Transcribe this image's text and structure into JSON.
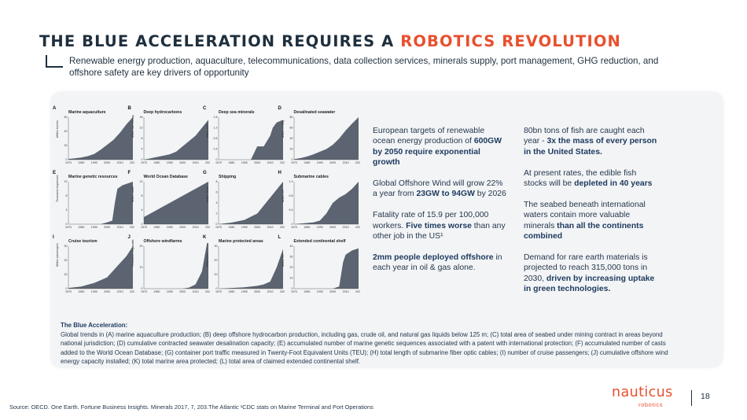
{
  "title": {
    "main": "THE BLUE ACCELERATION REQUIRES A",
    "accent": "ROBOTICS REVOLUTION"
  },
  "subtitle": "Renewable energy production, aquaculture, telecommunications, data collection services, minerals supply, port management, GHG reduction, and offshore safety are key drivers of opportunity",
  "colors": {
    "accent": "#e8502e",
    "navy": "#1f2f3d",
    "card": "#f3f4f6",
    "area": "#5b6470"
  },
  "col1": {
    "p1_pre": "European targets of renewable ocean energy production of ",
    "p1_b": "600GW by 2050 require exponential growth",
    "p2_pre": "Global Offshore Wind will grow 22% a year from ",
    "p2_b": "23GW to 94GW",
    "p2_post": " by 2026",
    "p3_pre": "Fatality rate of 15.9 per 100,000 workers. ",
    "p3_b": "Five times worse",
    "p3_post": " than any other job in the US¹",
    "p4_b": "2mm people deployed offshore",
    "p4_post": " in each year in oil & gas alone."
  },
  "col2": {
    "p1_pre": "80bn tons of fish are caught each year - ",
    "p1_b": "3x the mass of every person in the United States.",
    "p2_pre": "At present rates, the edible fish stocks will be ",
    "p2_b": "depleted in 40 years",
    "p3_pre": "The seabed beneath international waters contain more valuable minerals ",
    "p3_b": "than all the continents combined",
    "p4_pre": "Demand for rare earth materials is projected to reach 315,000 tons in 2030, ",
    "p4_b": "driven by increasing uptake in green technologies."
  },
  "caption": {
    "heading": "The Blue Acceleration:",
    "body": "Global trends in (A) marine aquaculture production; (B) deep offshore hydrocarbon production, including gas, crude oil, and natural gas liquids below 125 m; (C) total area of seabed under mining contract in areas beyond national jurisdiction; (D) cumulative contracted seawater desalination capacity; (E) accumulated number of marine genetic sequences associated with a patent with international protection; (F) accumulated number of casts added to the World Ocean Database; (G) container port traffic measured in Twenty-Foot Equivalent Units (TEU); (H) total length of submarine fiber optic cables; (I) number of cruise passengers; (J) cumulative offshore wind energy capacity installed; (K) total marine area protected; (L) total area of claimed extended continental shelf."
  },
  "source": "Source: OECD. One Earth. Fortune Business Insights. Minerals 2017, 7, 203.The Atlantic  ¹CDC stats on Marine Terminal and Port Operations",
  "logo": {
    "name": "nauticus",
    "sub": "robotics"
  },
  "page_number": "18",
  "chart_data": [
    {
      "type": "area",
      "panel": "A",
      "title": "Marine aquaculture",
      "ylabel": "Million tonnes",
      "xticks": [
        "1970",
        "1980",
        "1990",
        "2000",
        "2010",
        "2020"
      ],
      "yticks": [
        "0",
        "20",
        "40",
        "60"
      ],
      "x": [
        1970,
        1975,
        1980,
        1985,
        1990,
        1995,
        2000,
        2005,
        2010,
        2015,
        2020
      ],
      "y": [
        1,
        2,
        3,
        5,
        8,
        14,
        21,
        28,
        38,
        50,
        60
      ]
    },
    {
      "type": "area",
      "panel": "B",
      "title": "Deep hydrocarbons",
      "ylabel": "Million barrels/day",
      "xticks": [
        "1970",
        "1980",
        "1990",
        "2000",
        "2010",
        "2020"
      ],
      "yticks": [
        "0",
        "4",
        "8",
        "12",
        "16"
      ],
      "x": [
        1970,
        1975,
        1980,
        1985,
        1990,
        1995,
        2000,
        2005,
        2010,
        2015,
        2020
      ],
      "y": [
        0,
        0.5,
        1,
        1.5,
        2,
        3,
        5,
        7,
        9,
        12,
        15
      ]
    },
    {
      "type": "area",
      "panel": "C",
      "title": "Deep sea minerals",
      "ylabel": "Million km²",
      "xticks": [
        "1970",
        "1980",
        "1990",
        "2000",
        "2010",
        "2020"
      ],
      "yticks": [
        "0",
        "0.4",
        "0.8",
        "1.2",
        "1.6"
      ],
      "x": [
        1970,
        1995,
        2000,
        2002,
        2005,
        2010,
        2012,
        2015,
        2020
      ],
      "y": [
        0,
        0,
        0.5,
        0.5,
        0.5,
        0.9,
        1.2,
        1.4,
        1.5
      ]
    },
    {
      "type": "area",
      "panel": "D",
      "title": "Desalinated seawater",
      "ylabel": "Million m³/day",
      "xticks": [
        "1970",
        "1980",
        "1990",
        "2000",
        "2010",
        "2020"
      ],
      "yticks": [
        "0",
        "20",
        "40",
        "60",
        "80"
      ],
      "x": [
        1970,
        1975,
        1980,
        1985,
        1990,
        1995,
        2000,
        2005,
        2010,
        2015,
        2020
      ],
      "y": [
        1,
        3,
        6,
        10,
        15,
        20,
        28,
        40,
        55,
        68,
        80
      ]
    },
    {
      "type": "area",
      "panel": "E",
      "title": "Marine genetic resources",
      "ylabel": "Thousand sequences",
      "xticks": [
        "1970",
        "1980",
        "1990",
        "2000",
        "2010",
        "2020"
      ],
      "yticks": [
        "0",
        "4",
        "8",
        "12"
      ],
      "x": [
        1970,
        1995,
        2000,
        2004,
        2006,
        2008,
        2012,
        2020
      ],
      "y": [
        0,
        0,
        0.5,
        1,
        6,
        10,
        11,
        12
      ]
    },
    {
      "type": "area",
      "panel": "F",
      "title": "World Ocean Database",
      "ylabel": "Million casts",
      "xticks": [
        "1970",
        "1980",
        "1990",
        "2000",
        "2010",
        "2020"
      ],
      "yticks": [
        "0",
        "4",
        "8",
        "12"
      ],
      "x": [
        1970,
        1980,
        1990,
        2000,
        2010,
        2020
      ],
      "y": [
        2,
        4,
        6,
        8,
        10,
        12
      ]
    },
    {
      "type": "area",
      "panel": "G",
      "title": "Shipping",
      "ylabel": "Million TEUs",
      "xticks": [
        "1970",
        "1980",
        "1990",
        "2000",
        "2010",
        "2020"
      ],
      "yticks": [
        "0",
        "2",
        "4",
        "6",
        "8"
      ],
      "x": [
        1970,
        1980,
        1990,
        2000,
        2005,
        2010,
        2015,
        2020
      ],
      "y": [
        0,
        0.3,
        0.8,
        2,
        3.5,
        5,
        6.5,
        8
      ]
    },
    {
      "type": "area",
      "panel": "H",
      "title": "Submarine cables",
      "ylabel": "Million km",
      "xticks": [
        "1970",
        "1980",
        "1990",
        "2000",
        "2010",
        "2020"
      ],
      "yticks": [
        "0",
        "0.4",
        "0.8",
        "1.2"
      ],
      "x": [
        1970,
        1985,
        1990,
        1995,
        2000,
        2005,
        2010,
        2015,
        2020
      ],
      "y": [
        0,
        0.05,
        0.1,
        0.3,
        0.6,
        0.75,
        0.85,
        1,
        1.2
      ]
    },
    {
      "type": "area",
      "panel": "I",
      "title": "Cruise tourism",
      "ylabel": "Million passengers",
      "xticks": [
        "1970",
        "1980",
        "1990",
        "2000",
        "2010",
        "2020"
      ],
      "yticks": [
        "0",
        "10",
        "20",
        "30"
      ],
      "x": [
        1970,
        1980,
        1990,
        2000,
        2010,
        2015,
        2020
      ],
      "y": [
        0.5,
        1.5,
        4,
        8,
        18,
        23,
        30
      ]
    },
    {
      "type": "area",
      "panel": "J",
      "title": "Offshore windfarms",
      "ylabel": "Thousand megawatts",
      "xticks": [
        "1970",
        "1980",
        "1990",
        "2000",
        "2010",
        "2020"
      ],
      "yticks": [
        "0",
        "10",
        "20"
      ],
      "x": [
        1970,
        2000,
        2005,
        2010,
        2015,
        2020
      ],
      "y": [
        0,
        0,
        0.5,
        2,
        8,
        25
      ]
    },
    {
      "type": "area",
      "panel": "K",
      "title": "Marine protected areas",
      "ylabel": "Million km²",
      "xticks": [
        "1970",
        "1980",
        "1990",
        "2000",
        "2010",
        "2020"
      ],
      "yticks": [
        "0",
        "10",
        "20",
        "30"
      ],
      "x": [
        1970,
        1980,
        1990,
        2000,
        2005,
        2010,
        2015,
        2020
      ],
      "y": [
        0,
        0.5,
        1,
        2,
        3,
        5,
        15,
        28
      ]
    },
    {
      "type": "area",
      "panel": "L",
      "title": "Extended continental shelf",
      "ylabel": "Million km²",
      "xticks": [
        "1970",
        "1980",
        "1990",
        "2000",
        "2010",
        "2020"
      ],
      "yticks": [
        "0",
        "10",
        "20",
        "30",
        "40"
      ],
      "x": [
        1970,
        2000,
        2005,
        2008,
        2010,
        2015,
        2020
      ],
      "y": [
        0,
        0,
        2,
        25,
        32,
        36,
        38
      ]
    }
  ]
}
